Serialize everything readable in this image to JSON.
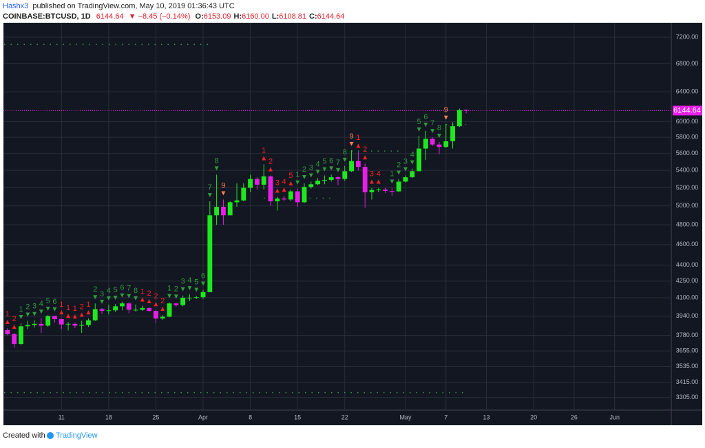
{
  "header": {
    "author": "Hashx3",
    "published": "published on TradingView.com, May 10, 2019 01:36:43 UTC",
    "symbol": "COINBASE:BTCUSD, 1D",
    "last": "6144.64",
    "change": "▼ −8.45 (−0.14%)",
    "ohlc": [
      [
        "O:",
        "6153.09"
      ],
      [
        "H:",
        "6160.00"
      ],
      [
        "L:",
        "6108.81"
      ],
      [
        "C:",
        "6144.64"
      ]
    ]
  },
  "footer": {
    "created": "Created with",
    "brand": "TradingView"
  },
  "chart_data": {
    "type": "candlestick",
    "log_scale": true,
    "grid": true,
    "up_color": "#1ee81e",
    "down_color": "#e61ee6",
    "background": "#131722",
    "x": [
      0,
      1,
      2,
      3,
      4,
      5,
      6,
      7,
      8,
      9,
      10,
      11,
      12,
      13,
      14,
      15,
      16,
      17,
      18,
      19,
      20,
      21,
      22,
      23,
      24,
      25,
      26,
      27,
      28,
      29,
      30,
      31,
      32,
      33,
      34,
      35,
      36,
      37,
      38,
      39,
      40,
      41,
      42,
      43,
      44,
      45,
      46,
      47,
      48,
      49,
      50,
      51,
      52,
      53,
      54,
      55,
      56,
      57,
      58,
      59,
      60,
      61,
      62,
      63,
      64,
      65,
      66,
      67,
      68
    ],
    "open": [
      3823,
      3790,
      3710,
      3855,
      3865,
      3875,
      3860,
      3940,
      3915,
      3870,
      3875,
      3860,
      3865,
      3905,
      4000,
      3985,
      3990,
      4025,
      4050,
      3995,
      3995,
      4010,
      3985,
      3920,
      3935,
      4050,
      4035,
      4100,
      4100,
      4105,
      4150,
      4900,
      4990,
      4900,
      5040,
      5060,
      5200,
      5300,
      5235,
      5330,
      5050,
      5080,
      5070,
      5160,
      5040,
      5210,
      5240,
      5280,
      5290,
      5320,
      5300,
      5390,
      5510,
      5440,
      5150,
      5175,
      5180,
      5165,
      5160,
      5270,
      5320,
      5390,
      5660,
      5780,
      5710,
      5680,
      5750,
      5940,
      6153.09
    ],
    "high": [
      3840,
      3800,
      3880,
      3900,
      3905,
      3925,
      3950,
      3945,
      3920,
      3890,
      3885,
      3900,
      3920,
      4050,
      4010,
      4040,
      4045,
      4065,
      4060,
      4040,
      4030,
      4015,
      3990,
      3950,
      4060,
      4055,
      4120,
      4130,
      4115,
      4170,
      5050,
      5350,
      5070,
      5050,
      5250,
      5250,
      5350,
      5320,
      5470,
      5340,
      5100,
      5110,
      5180,
      5190,
      5250,
      5270,
      5310,
      5340,
      5350,
      5330,
      5450,
      5640,
      5620,
      5480,
      5200,
      5200,
      5200,
      5200,
      5300,
      5340,
      5420,
      5820,
      5880,
      5800,
      5740,
      5970,
      5990,
      6170,
      6160
    ],
    "low": [
      3780,
      3680,
      3700,
      3830,
      3845,
      3800,
      3850,
      3885,
      3830,
      3820,
      3840,
      3800,
      3850,
      3900,
      3960,
      3955,
      3975,
      3990,
      3965,
      3980,
      3985,
      3975,
      3880,
      3910,
      3930,
      4020,
      4025,
      4070,
      4090,
      4090,
      4150,
      4800,
      4800,
      4900,
      4990,
      5050,
      5150,
      5180,
      5180,
      5000,
      4950,
      5050,
      5050,
      4990,
      5030,
      5190,
      5230,
      5240,
      5270,
      5230,
      5280,
      5380,
      5400,
      4980,
      5070,
      5150,
      5140,
      5110,
      5150,
      5260,
      5310,
      5390,
      5520,
      5690,
      5590,
      5670,
      5660,
      5930,
      6108.81
    ],
    "close": [
      3790,
      3710,
      3855,
      3865,
      3875,
      3860,
      3940,
      3915,
      3870,
      3875,
      3860,
      3865,
      3905,
      4000,
      3985,
      3990,
      4025,
      4050,
      3995,
      3995,
      4010,
      3985,
      3920,
      3935,
      4050,
      4035,
      4100,
      4100,
      4105,
      4150,
      4900,
      4990,
      4900,
      5040,
      5060,
      5200,
      5300,
      5235,
      5330,
      5050,
      5080,
      5070,
      5160,
      5040,
      5210,
      5240,
      5280,
      5290,
      5320,
      5300,
      5390,
      5510,
      5440,
      5150,
      5175,
      5180,
      5165,
      5160,
      5270,
      5320,
      5390,
      5660,
      5780,
      5710,
      5680,
      5750,
      5940,
      6150,
      6144.64
    ],
    "xlim": [
      -0.6,
      98.4
    ],
    "xticks": [
      {
        "value": 8,
        "label": "11"
      },
      {
        "value": 15,
        "label": "18"
      },
      {
        "value": 22,
        "label": "25"
      },
      {
        "value": 29,
        "label": "Apr"
      },
      {
        "value": 36,
        "label": "8"
      },
      {
        "value": 43,
        "label": "15"
      },
      {
        "value": 50,
        "label": "22"
      },
      {
        "value": 59,
        "label": "May"
      },
      {
        "value": 65,
        "label": "7"
      },
      {
        "value": 71,
        "label": "13"
      },
      {
        "value": 78,
        "label": "20"
      },
      {
        "value": 84,
        "label": "26"
      },
      {
        "value": 90,
        "label": "Jun"
      }
    ],
    "ylim": [
      3216,
      7429
    ],
    "yticks": [
      {
        "value": 7200,
        "label": "7200.00"
      },
      {
        "value": 6800,
        "label": "6800.00"
      },
      {
        "value": 6400,
        "label": "6400.00"
      },
      {
        "value": 6000,
        "label": "6000.00"
      },
      {
        "value": 5800,
        "label": "5800.00"
      },
      {
        "value": 5600,
        "label": "5600.00"
      },
      {
        "value": 5400,
        "label": "5400.00"
      },
      {
        "value": 5200,
        "label": "5200.00"
      },
      {
        "value": 5000,
        "label": "5000.00"
      },
      {
        "value": 4800,
        "label": "4800.00"
      },
      {
        "value": 4600,
        "label": "4600.00"
      },
      {
        "value": 4400,
        "label": "4400.00"
      },
      {
        "value": 4250,
        "label": "4250.00"
      },
      {
        "value": 4100,
        "label": "4100.00"
      },
      {
        "value": 3940,
        "label": "3940.00"
      },
      {
        "value": 3780,
        "label": "3780.00"
      },
      {
        "value": 3655,
        "label": "3655.00"
      },
      {
        "value": 3535,
        "label": "3535.00"
      },
      {
        "value": 3415,
        "label": "3415.00"
      },
      {
        "value": 3305,
        "label": "3305.00"
      }
    ],
    "price_line": 6144.64,
    "price_line_color": "#e91ee9",
    "levels": [
      {
        "value": 7090,
        "x": [
          -0.5,
          30
        ]
      },
      {
        "value": 5085,
        "x": [
          38,
          48
        ]
      },
      {
        "value": 5630,
        "x": [
          51,
          58
        ]
      },
      {
        "value": 5960,
        "x": [
          65,
          68
        ]
      },
      {
        "value": 3340,
        "x": [
          -0.5,
          68
        ]
      }
    ],
    "level_color": "#2e9e3a",
    "counts": [
      {
        "x": 0,
        "text": "1",
        "color": "#ff2020",
        "arrow": "up"
      },
      {
        "x": 1,
        "text": "2",
        "color": "#ff2020",
        "arrow": "up"
      },
      {
        "x": 2,
        "text": "1",
        "color": "#2e9e3a",
        "arrow": "down"
      },
      {
        "x": 3,
        "text": "2",
        "color": "#2e9e3a",
        "arrow": "down"
      },
      {
        "x": 4,
        "text": "3",
        "color": "#2e9e3a",
        "arrow": "down"
      },
      {
        "x": 5,
        "text": "4",
        "color": "#2e9e3a",
        "arrow": "down"
      },
      {
        "x": 6,
        "text": "5",
        "color": "#2e9e3a",
        "arrow": "down"
      },
      {
        "x": 7,
        "text": "6",
        "color": "#2e9e3a",
        "arrow": "down"
      },
      {
        "x": 8,
        "text": "1",
        "color": "#ff2020",
        "arrow": "up"
      },
      {
        "x": 9,
        "text": "1",
        "color": "#ff2020",
        "arrow": "up"
      },
      {
        "x": 10,
        "text": "1",
        "color": "#ff2020",
        "arrow": "up"
      },
      {
        "x": 11,
        "text": "2",
        "color": "#ff2020",
        "arrow": "up"
      },
      {
        "x": 12,
        "text": "1",
        "color": "#ff2020",
        "arrow": "up"
      },
      {
        "x": 13,
        "text": "2",
        "color": "#2e9e3a",
        "arrow": "down"
      },
      {
        "x": 14,
        "text": "3",
        "color": "#2e9e3a",
        "arrow": "down"
      },
      {
        "x": 15,
        "text": "4",
        "color": "#2e9e3a",
        "arrow": "down"
      },
      {
        "x": 16,
        "text": "5",
        "color": "#2e9e3a",
        "arrow": "down"
      },
      {
        "x": 17,
        "text": "6",
        "color": "#2e9e3a",
        "arrow": "down"
      },
      {
        "x": 18,
        "text": "7",
        "color": "#2e9e3a",
        "arrow": "down"
      },
      {
        "x": 19,
        "text": "8",
        "color": "#2e9e3a",
        "arrow": "down"
      },
      {
        "x": 20,
        "text": "1",
        "color": "#ff2020",
        "arrow": "up"
      },
      {
        "x": 21,
        "text": "2",
        "color": "#ff2020",
        "arrow": "up"
      },
      {
        "x": 22,
        "text": "2",
        "color": "#ff2020",
        "arrow": "up"
      },
      {
        "x": 23,
        "text": "2",
        "color": "#ff2020",
        "arrow": "up"
      },
      {
        "x": 24,
        "text": "1",
        "color": "#2e9e3a",
        "arrow": "down"
      },
      {
        "x": 25,
        "text": "2",
        "color": "#2e9e3a",
        "arrow": "down"
      },
      {
        "x": 26,
        "text": "3",
        "color": "#2e9e3a",
        "arrow": "down"
      },
      {
        "x": 27,
        "text": "4",
        "color": "#2e9e3a",
        "arrow": "down"
      },
      {
        "x": 28,
        "text": "5",
        "color": "#2e9e3a",
        "arrow": "down"
      },
      {
        "x": 29,
        "text": "6",
        "color": "#2e9e3a",
        "arrow": "down"
      },
      {
        "x": 30,
        "text": "7",
        "color": "#2e9e3a",
        "arrow": "down"
      },
      {
        "x": 31,
        "text": "8",
        "color": "#2e9e3a",
        "arrow": "down"
      },
      {
        "x": 32,
        "text": "9",
        "color": "#ff7f50",
        "arrow": "down"
      },
      {
        "x": 38,
        "text": "1",
        "color": "#ff2020",
        "arrow": "up"
      },
      {
        "x": 39,
        "text": "2",
        "color": "#ff2020",
        "arrow": "up"
      },
      {
        "x": 40,
        "text": "3",
        "color": "#ff2020",
        "arrow": "up"
      },
      {
        "x": 41,
        "text": "4",
        "color": "#ff2020",
        "arrow": "up"
      },
      {
        "x": 42,
        "text": "5",
        "color": "#ff2020",
        "arrow": "up"
      },
      {
        "x": 43,
        "text": "1",
        "color": "#2e9e3a",
        "arrow": "down"
      },
      {
        "x": 44,
        "text": "2",
        "color": "#2e9e3a",
        "arrow": "down"
      },
      {
        "x": 45,
        "text": "3",
        "color": "#2e9e3a",
        "arrow": "down"
      },
      {
        "x": 46,
        "text": "4",
        "color": "#2e9e3a",
        "arrow": "down"
      },
      {
        "x": 47,
        "text": "5",
        "color": "#2e9e3a",
        "arrow": "down"
      },
      {
        "x": 48,
        "text": "6",
        "color": "#2e9e3a",
        "arrow": "down"
      },
      {
        "x": 49,
        "text": "7",
        "color": "#2e9e3a",
        "arrow": "down"
      },
      {
        "x": 50,
        "text": "8",
        "color": "#2e9e3a",
        "arrow": "down"
      },
      {
        "x": 51,
        "text": "9",
        "color": "#ff7f50",
        "arrow": "down"
      },
      {
        "x": 52,
        "text": "1",
        "color": "#ff2020",
        "arrow": "up"
      },
      {
        "x": 53,
        "text": "2",
        "color": "#ff2020",
        "arrow": "up"
      },
      {
        "x": 54,
        "text": "3",
        "color": "#ff2020",
        "arrow": "up"
      },
      {
        "x": 55,
        "text": "4",
        "color": "#ff2020",
        "arrow": "up"
      },
      {
        "x": 57,
        "text": "1",
        "color": "#2e9e3a",
        "arrow": "down"
      },
      {
        "x": 58,
        "text": "2",
        "color": "#2e9e3a",
        "arrow": "down"
      },
      {
        "x": 59,
        "text": "3",
        "color": "#2e9e3a",
        "arrow": "down"
      },
      {
        "x": 60,
        "text": "4",
        "color": "#2e9e3a",
        "arrow": "down"
      },
      {
        "x": 61,
        "text": "5",
        "color": "#2e9e3a",
        "arrow": "down"
      },
      {
        "x": 62,
        "text": "6",
        "color": "#2e9e3a",
        "arrow": "down"
      },
      {
        "x": 63,
        "text": "7",
        "color": "#2e9e3a",
        "arrow": "down"
      },
      {
        "x": 64,
        "text": "8",
        "color": "#2e9e3a",
        "arrow": "down"
      },
      {
        "x": 65,
        "text": "9",
        "color": "#ff7f50",
        "arrow": "down"
      }
    ]
  }
}
